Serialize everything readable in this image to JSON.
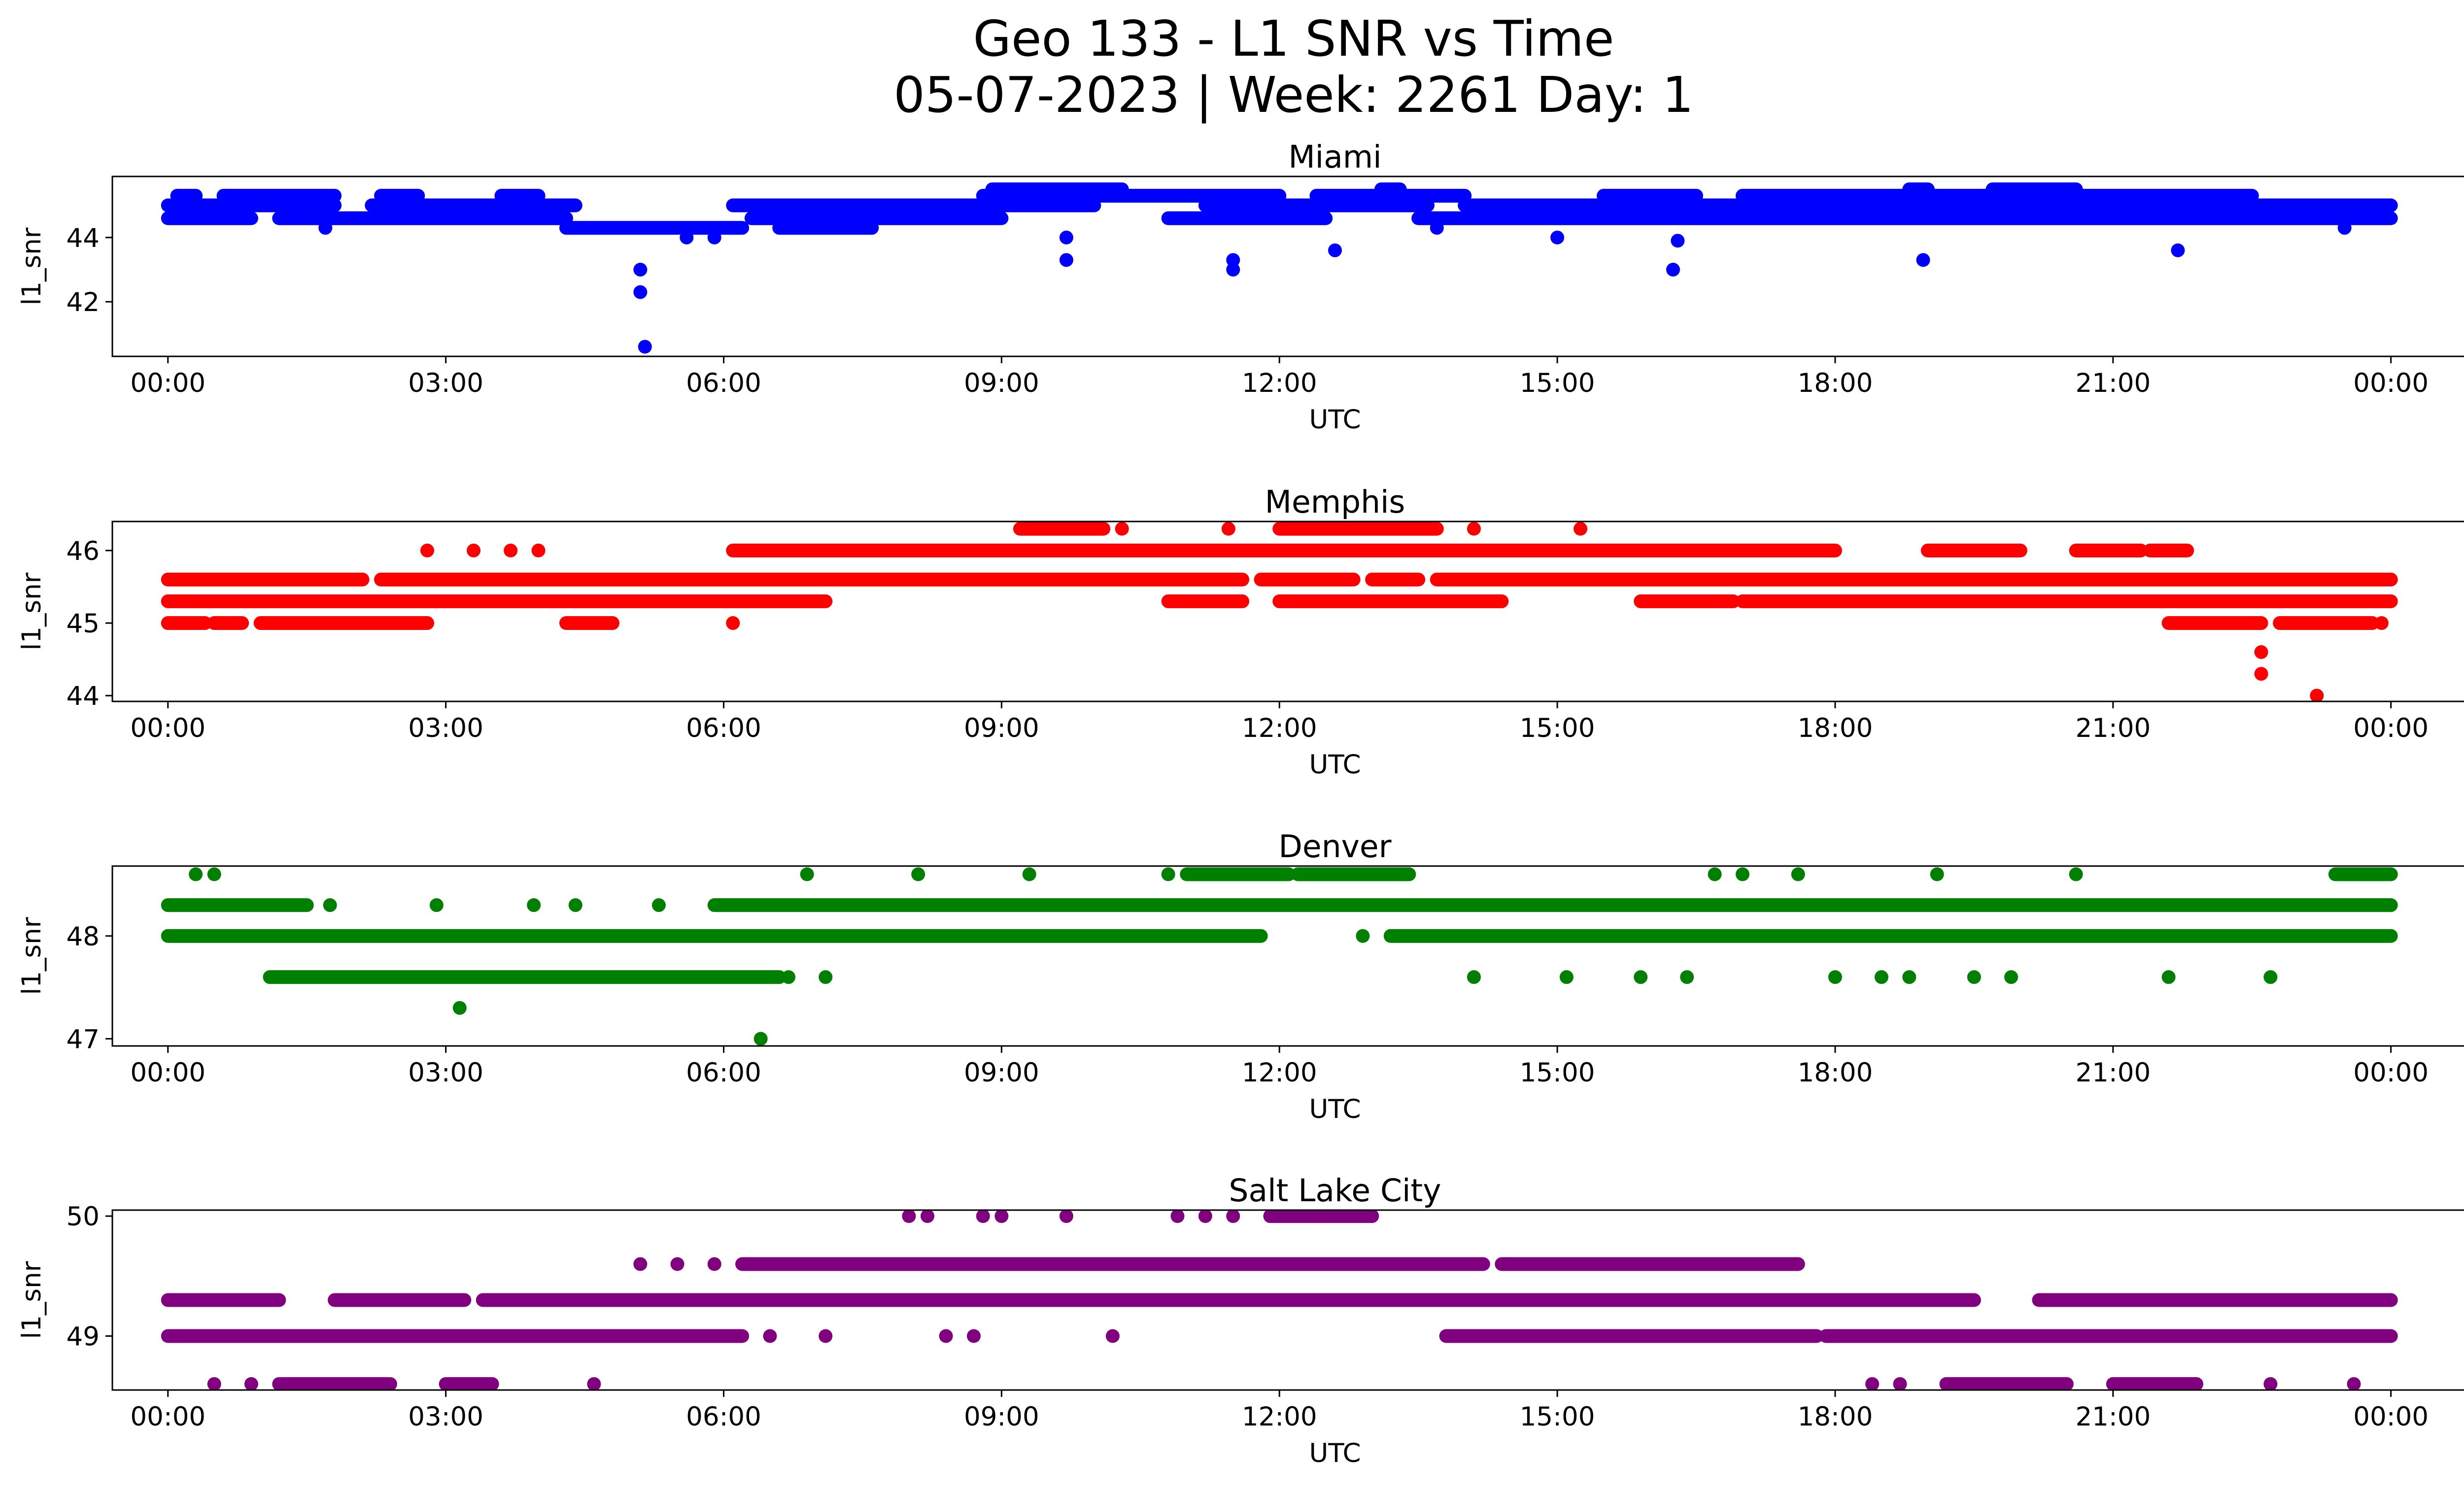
{
  "figure": {
    "title_line1": "Geo 133 - L1 SNR vs Time",
    "title_line2": "05-07-2023 | Week: 2261 Day: 1"
  },
  "chart_data": [
    {
      "type": "scatter",
      "title": "Miami",
      "xlabel": "UTC",
      "ylabel": "l1_snr",
      "color": "#0000ff",
      "xlim": [
        -0.6,
        25.8
      ],
      "ylim": [
        40.3,
        45.9
      ],
      "xticks": [
        0,
        3,
        6,
        9,
        12,
        15,
        18,
        21,
        24
      ],
      "xtick_labels": [
        "00:00",
        "03:00",
        "06:00",
        "09:00",
        "12:00",
        "15:00",
        "18:00",
        "21:00",
        "00:00"
      ],
      "yticks": [
        42,
        44
      ],
      "ytick_labels": [
        "42",
        "44"
      ],
      "bands": [
        {
          "y": 44.6,
          "segments": [
            [
              0,
              0.9
            ],
            [
              1.2,
              4.3
            ],
            [
              6.3,
              9.0
            ],
            [
              10.8,
              12.5
            ],
            [
              13.5,
              24
            ]
          ]
        },
        {
          "y": 45.0,
          "segments": [
            [
              0,
              1.8
            ],
            [
              2.2,
              4.4
            ],
            [
              6.1,
              10.0
            ],
            [
              11.2,
              13.6
            ],
            [
              14.0,
              24
            ]
          ]
        },
        {
          "y": 45.3,
          "segments": [
            [
              0.1,
              0.3
            ],
            [
              0.6,
              1.8
            ],
            [
              2.3,
              2.7
            ],
            [
              3.6,
              4.0
            ],
            [
              8.8,
              12.0
            ],
            [
              12.4,
              14.0
            ],
            [
              15.5,
              16.5
            ],
            [
              17.0,
              22.5
            ]
          ]
        },
        {
          "y": 44.3,
          "segments": [
            [
              4.3,
              6.2
            ],
            [
              6.6,
              7.6
            ]
          ]
        },
        {
          "y": 45.5,
          "segments": [
            [
              8.9,
              10.3
            ],
            [
              13.1,
              13.3
            ],
            [
              18.8,
              19.0
            ],
            [
              19.7,
              20.6
            ]
          ]
        }
      ],
      "points": [
        {
          "x": 5.1,
          "y": 43.0
        },
        {
          "x": 5.1,
          "y": 42.3
        },
        {
          "x": 5.15,
          "y": 40.6
        },
        {
          "x": 9.7,
          "y": 44.0
        },
        {
          "x": 9.7,
          "y": 43.3
        },
        {
          "x": 11.5,
          "y": 43.3
        },
        {
          "x": 11.5,
          "y": 43.0
        },
        {
          "x": 12.6,
          "y": 43.6
        },
        {
          "x": 16.25,
          "y": 43.0
        },
        {
          "x": 16.3,
          "y": 43.9
        },
        {
          "x": 18.95,
          "y": 43.3
        },
        {
          "x": 21.7,
          "y": 43.6
        },
        {
          "x": 15.0,
          "y": 44.0
        },
        {
          "x": 5.6,
          "y": 44.0
        },
        {
          "x": 5.9,
          "y": 44.0
        },
        {
          "x": 23.5,
          "y": 44.3
        },
        {
          "x": 1.7,
          "y": 44.3
        },
        {
          "x": 13.7,
          "y": 44.3
        }
      ]
    },
    {
      "type": "scatter",
      "title": "Memphis",
      "xlabel": "UTC",
      "ylabel": "l1_snr",
      "color": "#ff0000",
      "xlim": [
        -0.6,
        25.8
      ],
      "ylim": [
        43.92,
        46.4
      ],
      "xticks": [
        0,
        3,
        6,
        9,
        12,
        15,
        18,
        21,
        24
      ],
      "xtick_labels": [
        "00:00",
        "03:00",
        "06:00",
        "09:00",
        "12:00",
        "15:00",
        "18:00",
        "21:00",
        "00:00"
      ],
      "yticks": [
        44,
        45,
        46
      ],
      "ytick_labels": [
        "44",
        "45",
        "46"
      ],
      "bands": [
        {
          "y": 45.3,
          "segments": [
            [
              0,
              6.4
            ],
            [
              6.4,
              7.1
            ],
            [
              10.8,
              11.6
            ],
            [
              12.0,
              14.4
            ],
            [
              15.9,
              16.9
            ],
            [
              17.0,
              24
            ]
          ]
        },
        {
          "y": 45.6,
          "segments": [
            [
              0,
              2.1
            ],
            [
              2.3,
              11.6
            ],
            [
              11.8,
              12.8
            ],
            [
              13.0,
              13.5
            ],
            [
              13.7,
              24
            ]
          ]
        },
        {
          "y": 46.0,
          "segments": [
            [
              6.1,
              18.0
            ],
            [
              19.0,
              20.0
            ],
            [
              20.6,
              21.3
            ],
            [
              21.4,
              21.8
            ]
          ]
        },
        {
          "y": 45.0,
          "segments": [
            [
              0,
              0.4
            ],
            [
              0.5,
              0.8
            ],
            [
              1.0,
              2.8
            ],
            [
              4.3,
              4.8
            ],
            [
              21.6,
              22.6
            ],
            [
              22.8,
              23.8
            ]
          ]
        },
        {
          "y": 46.3,
          "segments": [
            [
              9.2,
              10.1
            ],
            [
              12.0,
              13.7
            ]
          ]
        }
      ],
      "points": [
        {
          "x": 2.8,
          "y": 46.0
        },
        {
          "x": 3.3,
          "y": 46.0
        },
        {
          "x": 3.7,
          "y": 46.0
        },
        {
          "x": 4.0,
          "y": 46.0
        },
        {
          "x": 6.1,
          "y": 45.0
        },
        {
          "x": 10.3,
          "y": 46.3
        },
        {
          "x": 11.45,
          "y": 46.3
        },
        {
          "x": 14.1,
          "y": 46.3
        },
        {
          "x": 15.25,
          "y": 46.3
        },
        {
          "x": 22.6,
          "y": 44.6
        },
        {
          "x": 22.6,
          "y": 44.3
        },
        {
          "x": 23.2,
          "y": 44.0
        },
        {
          "x": 23.5,
          "y": 45.0
        },
        {
          "x": 23.9,
          "y": 45.0
        }
      ]
    },
    {
      "type": "scatter",
      "title": "Denver",
      "xlabel": "UTC",
      "ylabel": "l1_snr",
      "color": "#008000",
      "xlim": [
        -0.6,
        25.8
      ],
      "ylim": [
        46.93,
        48.68
      ],
      "xticks": [
        0,
        3,
        6,
        9,
        12,
        15,
        18,
        21,
        24
      ],
      "xtick_labels": [
        "00:00",
        "03:00",
        "06:00",
        "09:00",
        "12:00",
        "15:00",
        "18:00",
        "21:00",
        "00:00"
      ],
      "yticks": [
        47,
        48
      ],
      "ytick_labels": [
        "47",
        "48"
      ],
      "bands": [
        {
          "y": 48.0,
          "segments": [
            [
              0,
              11.8
            ],
            [
              13.2,
              24
            ]
          ]
        },
        {
          "y": 48.3,
          "segments": [
            [
              0,
              1.5
            ],
            [
              5.9,
              24
            ]
          ]
        },
        {
          "y": 47.6,
          "segments": [
            [
              1.1,
              6.6
            ]
          ]
        },
        {
          "y": 48.6,
          "segments": [
            [
              11.0,
              12.1
            ],
            [
              12.2,
              13.4
            ],
            [
              23.4,
              24
            ]
          ]
        }
      ],
      "points": [
        {
          "x": 0.3,
          "y": 48.6
        },
        {
          "x": 0.5,
          "y": 48.6
        },
        {
          "x": 1.75,
          "y": 48.3
        },
        {
          "x": 2.9,
          "y": 48.3
        },
        {
          "x": 3.95,
          "y": 48.3
        },
        {
          "x": 4.4,
          "y": 48.3
        },
        {
          "x": 5.3,
          "y": 48.3
        },
        {
          "x": 3.15,
          "y": 47.3
        },
        {
          "x": 6.4,
          "y": 47.0
        },
        {
          "x": 6.7,
          "y": 47.6
        },
        {
          "x": 7.1,
          "y": 47.6
        },
        {
          "x": 6.9,
          "y": 48.6
        },
        {
          "x": 8.1,
          "y": 48.6
        },
        {
          "x": 9.3,
          "y": 48.6
        },
        {
          "x": 10.8,
          "y": 48.6
        },
        {
          "x": 12.9,
          "y": 48.0
        },
        {
          "x": 14.1,
          "y": 47.6
        },
        {
          "x": 15.1,
          "y": 47.6
        },
        {
          "x": 15.9,
          "y": 47.6
        },
        {
          "x": 16.4,
          "y": 47.6
        },
        {
          "x": 18.0,
          "y": 47.6
        },
        {
          "x": 18.5,
          "y": 47.6
        },
        {
          "x": 18.8,
          "y": 47.6
        },
        {
          "x": 19.5,
          "y": 47.6
        },
        {
          "x": 19.9,
          "y": 47.6
        },
        {
          "x": 21.6,
          "y": 47.6
        },
        {
          "x": 22.7,
          "y": 47.6
        },
        {
          "x": 16.7,
          "y": 48.6
        },
        {
          "x": 17.0,
          "y": 48.6
        },
        {
          "x": 17.6,
          "y": 48.6
        },
        {
          "x": 19.1,
          "y": 48.6
        },
        {
          "x": 20.6,
          "y": 48.6
        }
      ]
    },
    {
      "type": "scatter",
      "title": "Salt Lake City",
      "xlabel": "UTC",
      "ylabel": "l1_snr",
      "color": "#800080",
      "xlim": [
        -0.6,
        25.8
      ],
      "ylim": [
        48.55,
        50.05
      ],
      "xticks": [
        0,
        3,
        6,
        9,
        12,
        15,
        18,
        21,
        24
      ],
      "xtick_labels": [
        "00:00",
        "03:00",
        "06:00",
        "09:00",
        "12:00",
        "15:00",
        "18:00",
        "21:00",
        "00:00"
      ],
      "yticks": [
        49,
        50
      ],
      "ytick_labels": [
        "49",
        "50"
      ],
      "bands": [
        {
          "y": 49.0,
          "segments": [
            [
              0,
              6.2
            ],
            [
              13.8,
              17.8
            ],
            [
              17.9,
              24
            ]
          ]
        },
        {
          "y": 49.3,
          "segments": [
            [
              0,
              1.2
            ],
            [
              1.8,
              3.2
            ],
            [
              3.4,
              19.5
            ],
            [
              20.2,
              24
            ]
          ]
        },
        {
          "y": 49.6,
          "segments": [
            [
              6.2,
              14.2
            ],
            [
              14.4,
              17.6
            ]
          ]
        },
        {
          "y": 48.6,
          "segments": [
            [
              1.2,
              2.4
            ],
            [
              3.0,
              3.5
            ],
            [
              19.2,
              20.5
            ],
            [
              21.0,
              21.9
            ]
          ]
        },
        {
          "y": 50.0,
          "segments": [
            [
              11.9,
              12.5
            ],
            [
              12.5,
              13.0
            ]
          ]
        }
      ],
      "points": [
        {
          "x": 0.5,
          "y": 48.6
        },
        {
          "x": 0.9,
          "y": 48.6
        },
        {
          "x": 4.6,
          "y": 48.6
        },
        {
          "x": 5.1,
          "y": 49.6
        },
        {
          "x": 5.5,
          "y": 49.6
        },
        {
          "x": 5.9,
          "y": 49.6
        },
        {
          "x": 6.5,
          "y": 49.0
        },
        {
          "x": 7.1,
          "y": 49.0
        },
        {
          "x": 8.4,
          "y": 49.0
        },
        {
          "x": 8.7,
          "y": 49.0
        },
        {
          "x": 10.2,
          "y": 49.0
        },
        {
          "x": 8.0,
          "y": 50.0
        },
        {
          "x": 8.2,
          "y": 50.0
        },
        {
          "x": 8.8,
          "y": 50.0
        },
        {
          "x": 9.0,
          "y": 50.0
        },
        {
          "x": 9.7,
          "y": 50.0
        },
        {
          "x": 10.9,
          "y": 50.0
        },
        {
          "x": 11.2,
          "y": 50.0
        },
        {
          "x": 11.5,
          "y": 50.0
        },
        {
          "x": 18.4,
          "y": 48.6
        },
        {
          "x": 18.7,
          "y": 48.6
        },
        {
          "x": 22.7,
          "y": 48.6
        },
        {
          "x": 23.6,
          "y": 48.6
        }
      ]
    }
  ]
}
